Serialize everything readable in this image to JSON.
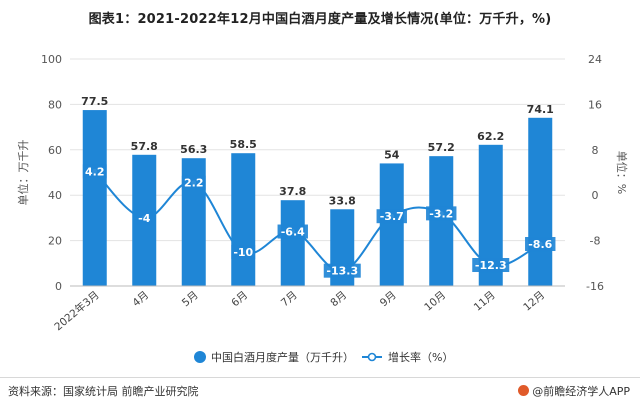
{
  "header": {
    "title": "图表1：2021-2022年12月中国白酒月度产量及增长情况(单位：万千升，%)"
  },
  "footer": {
    "source": "资料来源：国家统计局 前瞻产业研究院",
    "brand": "@前瞻经济学人APP"
  },
  "colors": {
    "bar": "#1f86d6",
    "line": "#1f86d6",
    "grid": "#e3e3e3"
  },
  "chart_data": {
    "type": "bar",
    "categories": [
      "2022年3月",
      "4月",
      "5月",
      "6月",
      "7月",
      "8月",
      "9月",
      "10月",
      "11月",
      "12月"
    ],
    "series": [
      {
        "name": "中国白酒月度产量（万千升）",
        "type": "bar",
        "axis": "left",
        "values": [
          77.5,
          57.8,
          56.3,
          58.5,
          37.8,
          33.8,
          54,
          57.2,
          62.2,
          74.1
        ]
      },
      {
        "name": "增长率（%）",
        "type": "line",
        "axis": "right",
        "values": [
          4.2,
          -4,
          2.2,
          -10,
          -6.4,
          -13.3,
          -3.7,
          -3.2,
          -12.3,
          -8.6
        ]
      }
    ],
    "ylabel": "单位：万千升",
    "y2label": "单位：%",
    "ylim": [
      0,
      100
    ],
    "y2lim": [
      -16,
      24
    ],
    "yticks": [
      0,
      20,
      40,
      60,
      80,
      100
    ],
    "y2ticks": [
      -16,
      -8,
      0,
      8,
      16,
      24
    ],
    "grid": true,
    "legend_position": "bottom"
  }
}
